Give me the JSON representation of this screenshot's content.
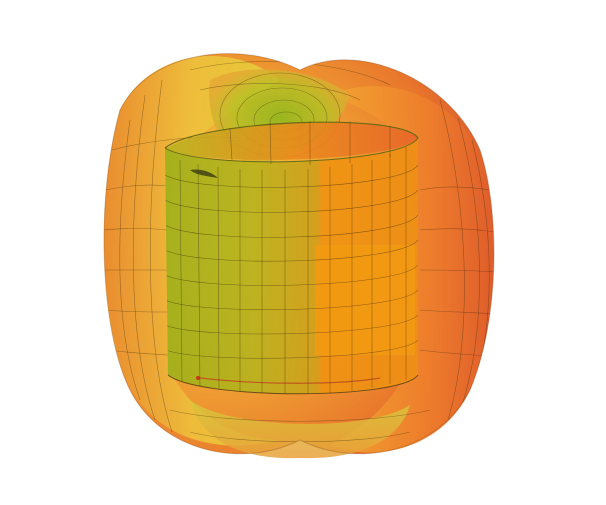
{
  "scene": {
    "subject": "3d-surface-plot",
    "background_color": "#ffffff",
    "mesh_color": "#3a2a10",
    "colors": {
      "green": "#9ac21a",
      "yellow_green": "#c9c31f",
      "yellow": "#e4c437",
      "orange": "#f09024",
      "red_orange": "#e8502a",
      "cylinder_olive": "#a8a21a",
      "cylinder_orange": "#ef8f12"
    }
  }
}
